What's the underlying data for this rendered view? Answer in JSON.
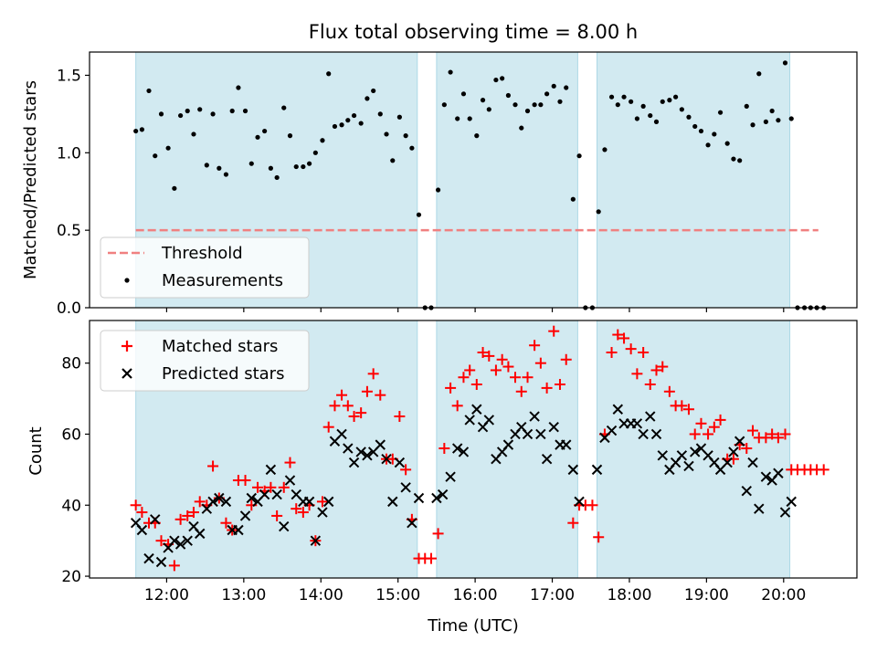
{
  "title": "Flux total observing time = 8.00 h",
  "top_panel": {
    "ylabel": "Matched/Predicted stars",
    "yticks": [
      "0.0",
      "0.5",
      "1.0",
      "1.5"
    ],
    "legend": {
      "threshold": "Threshold",
      "measurements": "Measurements"
    }
  },
  "bottom_panel": {
    "ylabel": "Count",
    "yticks": [
      "20",
      "40",
      "60",
      "80"
    ],
    "legend": {
      "matched": "Matched stars",
      "predicted": "Predicted stars"
    }
  },
  "xlabel": "Time (UTC)",
  "xticks": [
    "12:00",
    "13:00",
    "14:00",
    "15:00",
    "16:00",
    "17:00",
    "18:00",
    "19:00",
    "20:00"
  ],
  "colors": {
    "band": "#add8e6",
    "threshold": "#f08080",
    "matched": "#ff0000",
    "predicted": "#000000",
    "measurement": "#000000"
  },
  "chart_data": [
    {
      "type": "scatter",
      "panel": "top",
      "title": "Flux total observing time = 8.00 h",
      "xlabel": "Time (UTC)",
      "ylabel": "Matched/Predicted stars",
      "x_unit": "hours UTC",
      "xlim": [
        11.0,
        20.95
      ],
      "ylim": [
        0,
        1.65
      ],
      "threshold": 0.5,
      "threshold_range": [
        11.6,
        20.45
      ],
      "observing_bands": [
        [
          11.6,
          15.25
        ],
        [
          15.5,
          17.33
        ],
        [
          17.58,
          20.08
        ]
      ],
      "series": [
        {
          "name": "Measurements",
          "x": [
            11.6,
            11.68,
            11.77,
            11.85,
            11.93,
            12.02,
            12.1,
            12.18,
            12.27,
            12.35,
            12.43,
            12.52,
            12.6,
            12.68,
            12.77,
            12.85,
            12.93,
            13.02,
            13.1,
            13.18,
            13.27,
            13.35,
            13.43,
            13.52,
            13.6,
            13.68,
            13.77,
            13.85,
            13.93,
            14.02,
            14.1,
            14.18,
            14.27,
            14.35,
            14.43,
            14.52,
            14.6,
            14.68,
            14.77,
            14.85,
            14.93,
            15.02,
            15.1,
            15.18,
            15.27,
            15.35,
            15.43,
            15.52,
            15.6,
            15.68,
            15.77,
            15.85,
            15.93,
            16.02,
            16.1,
            16.18,
            16.27,
            16.35,
            16.43,
            16.52,
            16.6,
            16.68,
            16.77,
            16.85,
            16.93,
            17.02,
            17.1,
            17.18,
            17.27,
            17.35,
            17.43,
            17.52,
            17.6,
            17.68,
            17.77,
            17.85,
            17.93,
            18.02,
            18.1,
            18.18,
            18.27,
            18.35,
            18.43,
            18.52,
            18.6,
            18.68,
            18.77,
            18.85,
            18.93,
            19.02,
            19.1,
            19.18,
            19.27,
            19.35,
            19.43,
            19.52,
            19.6,
            19.68,
            19.77,
            19.85,
            19.93,
            20.02,
            20.1,
            20.18,
            20.27,
            20.35,
            20.43,
            20.52
          ],
          "values": [
            1.14,
            1.15,
            1.4,
            0.98,
            1.25,
            1.03,
            0.77,
            1.24,
            1.27,
            1.12,
            1.28,
            0.92,
            1.25,
            0.9,
            0.86,
            1.27,
            1.42,
            1.27,
            0.93,
            1.1,
            1.14,
            0.9,
            0.84,
            1.29,
            1.11,
            0.91,
            0.91,
            0.93,
            1.0,
            1.08,
            1.51,
            1.17,
            1.18,
            1.21,
            1.24,
            1.19,
            1.35,
            1.4,
            1.25,
            1.12,
            0.95,
            1.23,
            1.11,
            1.03,
            0.6,
            0.0,
            0.0,
            0.76,
            1.31,
            1.52,
            1.22,
            1.38,
            1.22,
            1.11,
            1.34,
            1.28,
            1.47,
            1.48,
            1.37,
            1.31,
            1.16,
            1.27,
            1.31,
            1.31,
            1.38,
            1.43,
            1.33,
            1.42,
            0.7,
            0.98,
            0.0,
            0.0,
            0.62,
            1.02,
            1.36,
            1.31,
            1.36,
            1.33,
            1.22,
            1.3,
            1.24,
            1.2,
            1.33,
            1.34,
            1.36,
            1.28,
            1.23,
            1.17,
            1.14,
            1.05,
            1.12,
            1.26,
            1.06,
            0.96,
            0.95,
            1.3,
            1.18,
            1.51,
            1.2,
            1.27,
            1.21,
            1.58,
            1.22,
            0.0,
            0.0,
            0.0,
            0.0,
            0.0
          ]
        }
      ]
    },
    {
      "type": "scatter",
      "panel": "bottom",
      "xlabel": "Time (UTC)",
      "ylabel": "Count",
      "x_unit": "hours UTC",
      "xlim": [
        11.0,
        20.95
      ],
      "ylim": [
        19.5,
        92
      ],
      "observing_bands": [
        [
          11.6,
          15.25
        ],
        [
          15.5,
          17.33
        ],
        [
          17.58,
          20.08
        ]
      ],
      "series": [
        {
          "name": "Matched stars",
          "marker": "+",
          "x": [
            11.6,
            11.68,
            11.77,
            11.85,
            11.93,
            12.02,
            12.1,
            12.18,
            12.27,
            12.35,
            12.43,
            12.52,
            12.6,
            12.68,
            12.77,
            12.85,
            12.93,
            13.02,
            13.1,
            13.18,
            13.27,
            13.35,
            13.43,
            13.52,
            13.6,
            13.68,
            13.77,
            13.85,
            13.93,
            14.02,
            14.1,
            14.18,
            14.27,
            14.35,
            14.43,
            14.52,
            14.6,
            14.68,
            14.77,
            14.85,
            14.93,
            15.02,
            15.1,
            15.18,
            15.27,
            15.35,
            15.43,
            15.52,
            15.6,
            15.68,
            15.77,
            15.85,
            15.93,
            16.02,
            16.1,
            16.18,
            16.27,
            16.35,
            16.43,
            16.52,
            16.6,
            16.68,
            16.77,
            16.85,
            16.93,
            17.02,
            17.1,
            17.18,
            17.27,
            17.35,
            17.43,
            17.52,
            17.6,
            17.68,
            17.77,
            17.85,
            17.93,
            18.02,
            18.1,
            18.18,
            18.27,
            18.35,
            18.43,
            18.52,
            18.6,
            18.68,
            18.77,
            18.85,
            18.93,
            19.02,
            19.1,
            19.18,
            19.27,
            19.35,
            19.43,
            19.52,
            19.6,
            19.68,
            19.77,
            19.85,
            19.93,
            20.02,
            20.1,
            20.18,
            20.27,
            20.35,
            20.43,
            20.52
          ],
          "values": [
            40,
            38,
            35,
            35,
            30,
            29,
            23,
            36,
            37,
            38,
            41,
            40,
            51,
            42,
            35,
            33,
            47,
            47,
            40,
            45,
            44,
            45,
            37,
            45,
            52,
            39,
            38,
            40,
            30,
            41,
            62,
            68,
            71,
            68,
            65,
            66,
            72,
            77,
            71,
            53,
            53,
            65,
            50,
            36,
            25,
            25,
            25,
            32,
            56,
            73,
            68,
            76,
            78,
            74,
            83,
            82,
            78,
            81,
            79,
            76,
            72,
            76,
            85,
            80,
            73,
            89,
            74,
            81,
            35,
            40,
            40,
            40,
            31,
            60,
            83,
            88,
            87,
            84,
            77,
            83,
            74,
            78,
            79,
            72,
            68,
            68,
            67,
            60,
            63,
            60,
            62,
            64,
            53,
            53,
            57,
            56,
            61,
            59,
            59,
            60,
            59,
            60,
            50,
            50,
            50,
            50,
            50,
            50
          ]
        },
        {
          "name": "Predicted stars",
          "marker": "x",
          "x": [
            11.6,
            11.68,
            11.77,
            11.85,
            11.93,
            12.02,
            12.1,
            12.18,
            12.27,
            12.35,
            12.43,
            12.52,
            12.6,
            12.68,
            12.77,
            12.85,
            12.93,
            13.02,
            13.1,
            13.18,
            13.27,
            13.35,
            13.43,
            13.52,
            13.6,
            13.68,
            13.77,
            13.85,
            13.93,
            14.02,
            14.1,
            14.18,
            14.27,
            14.35,
            14.43,
            14.52,
            14.6,
            14.68,
            14.77,
            14.85,
            14.93,
            15.02,
            15.1,
            15.18,
            15.27,
            15.5,
            15.58,
            15.68,
            15.77,
            15.85,
            15.93,
            16.02,
            16.1,
            16.18,
            16.27,
            16.35,
            16.43,
            16.52,
            16.6,
            16.68,
            16.77,
            16.85,
            16.93,
            17.02,
            17.1,
            17.18,
            17.27,
            17.35,
            17.58,
            17.68,
            17.77,
            17.85,
            17.93,
            18.02,
            18.1,
            18.18,
            18.27,
            18.35,
            18.43,
            18.52,
            18.6,
            18.68,
            18.77,
            18.85,
            18.93,
            19.02,
            19.1,
            19.18,
            19.27,
            19.35,
            19.43,
            19.52,
            19.6,
            19.68,
            19.77,
            19.85,
            19.93,
            20.02,
            20.1
          ],
          "values": [
            35,
            33,
            25,
            36,
            24,
            28,
            30,
            29,
            30,
            34,
            32,
            39,
            41,
            42,
            41,
            33,
            33,
            37,
            42,
            41,
            43,
            50,
            43,
            34,
            47,
            43,
            41,
            41,
            30,
            38,
            41,
            58,
            60,
            56,
            52,
            55,
            54,
            55,
            57,
            53,
            41,
            52,
            45,
            35,
            42,
            42,
            43,
            48,
            56,
            55,
            64,
            67,
            62,
            64,
            53,
            55,
            57,
            60,
            62,
            60,
            65,
            60,
            53,
            62,
            57,
            57,
            50,
            41,
            50,
            59,
            61,
            67,
            63,
            63,
            63,
            60,
            65,
            60,
            54,
            50,
            52,
            54,
            51,
            55,
            56,
            54,
            52,
            50,
            52,
            55,
            58,
            44,
            52,
            39,
            48,
            47,
            49,
            38,
            41
          ]
        }
      ]
    }
  ]
}
